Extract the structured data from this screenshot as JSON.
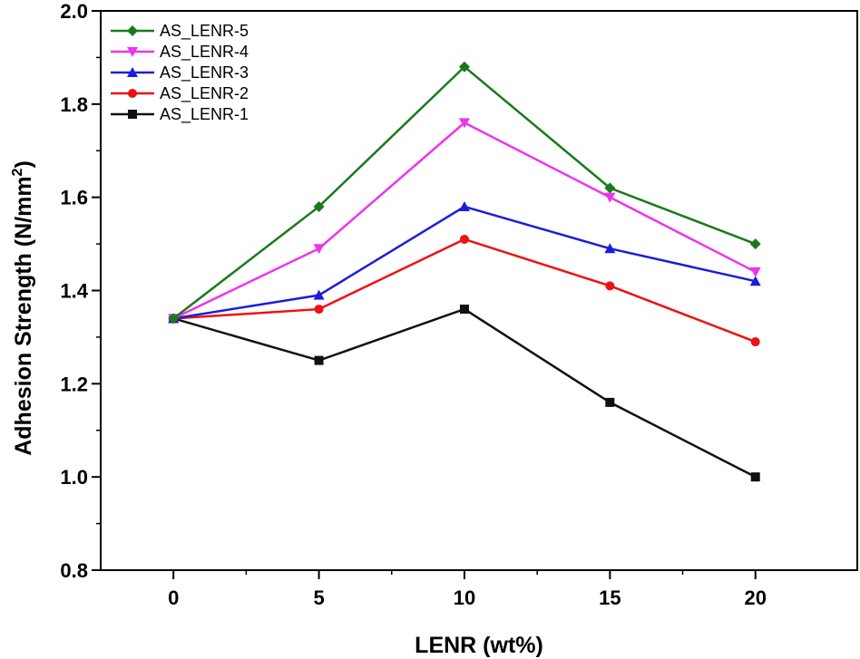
{
  "chart_data": {
    "type": "line",
    "title": "",
    "xlabel": "LENR (wt%)",
    "ylabel_main": "Adhesion Strength (N/mm",
    "ylabel_sup": "2",
    "ylabel_end": ")",
    "x": [
      0,
      5,
      10,
      15,
      20
    ],
    "x_ticks": [
      "0",
      "5",
      "10",
      "15",
      "20"
    ],
    "xlim": [
      -2.5,
      23.5
    ],
    "ylim": [
      0.8,
      2.0
    ],
    "y_ticks": [
      "0.8",
      "1.0",
      "1.2",
      "1.4",
      "1.6",
      "1.8",
      "2.0"
    ],
    "grid": false,
    "legend_position": "top-left",
    "series": [
      {
        "name": "AS_LENR-5",
        "color": "#1a7a1a",
        "marker": "diamond",
        "values": [
          1.34,
          1.58,
          1.88,
          1.62,
          1.5
        ]
      },
      {
        "name": "AS_LENR-4",
        "color": "#ee33ee",
        "marker": "triangle-down",
        "values": [
          1.34,
          1.49,
          1.76,
          1.6,
          1.44
        ]
      },
      {
        "name": "AS_LENR-3",
        "color": "#1c1cdd",
        "marker": "triangle-up",
        "values": [
          1.34,
          1.39,
          1.58,
          1.49,
          1.42
        ]
      },
      {
        "name": "AS_LENR-2",
        "color": "#ee1111",
        "marker": "circle",
        "values": [
          1.34,
          1.36,
          1.51,
          1.41,
          1.29
        ]
      },
      {
        "name": "AS_LENR-1",
        "color": "#111111",
        "marker": "square",
        "values": [
          1.34,
          1.25,
          1.36,
          1.16,
          1.0
        ]
      }
    ]
  }
}
